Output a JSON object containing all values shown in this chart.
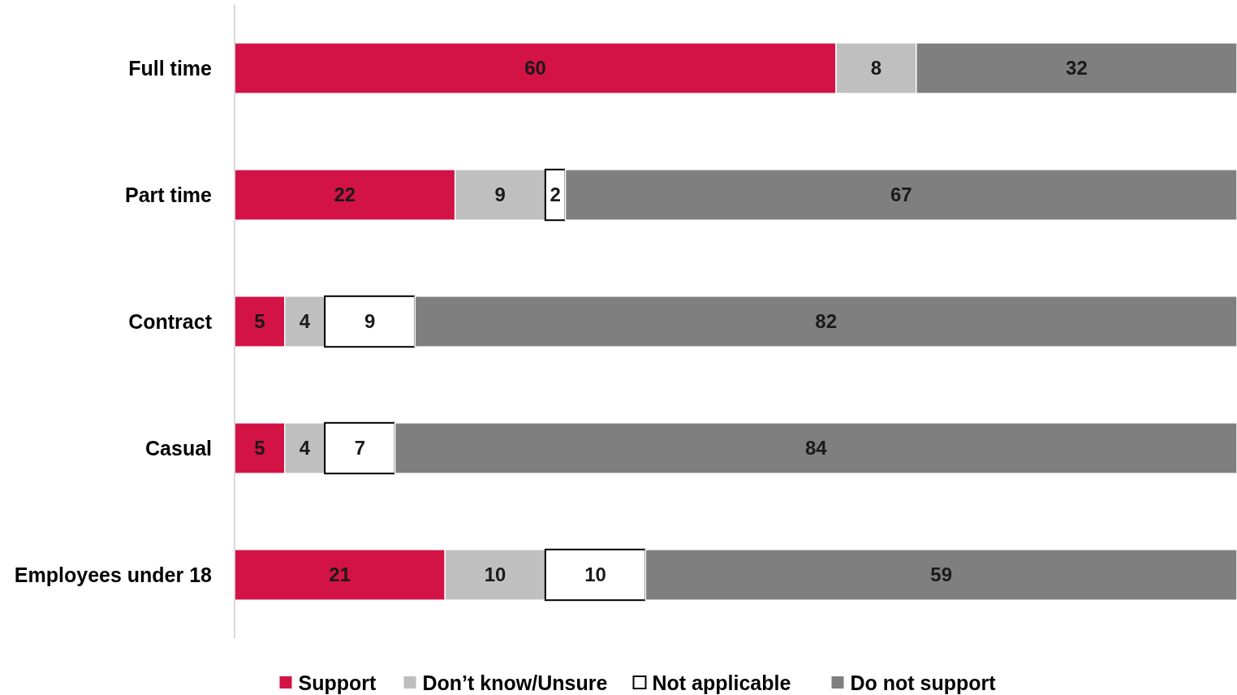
{
  "chart_data": {
    "type": "bar",
    "orientation": "horizontal",
    "stacked": true,
    "categories": [
      "Full time",
      "Part time",
      "Contract",
      "Casual",
      "Employees under 18"
    ],
    "series": [
      {
        "name": "Support",
        "color": "#d31245",
        "values": [
          60,
          22,
          5,
          5,
          21
        ]
      },
      {
        "name": "Don’t know/Unsure",
        "color": "#bfbfbf",
        "values": [
          8,
          9,
          4,
          4,
          10
        ]
      },
      {
        "name": "Not applicable",
        "color": "#ffffff",
        "values": [
          null,
          2,
          9,
          7,
          10
        ]
      },
      {
        "name": "Do not support",
        "color": "#7f7f7f",
        "values": [
          32,
          67,
          82,
          84,
          59
        ]
      }
    ],
    "xlim": [
      0,
      100
    ],
    "data_labels": true,
    "legend": "bottom",
    "tick_labels": "y"
  }
}
